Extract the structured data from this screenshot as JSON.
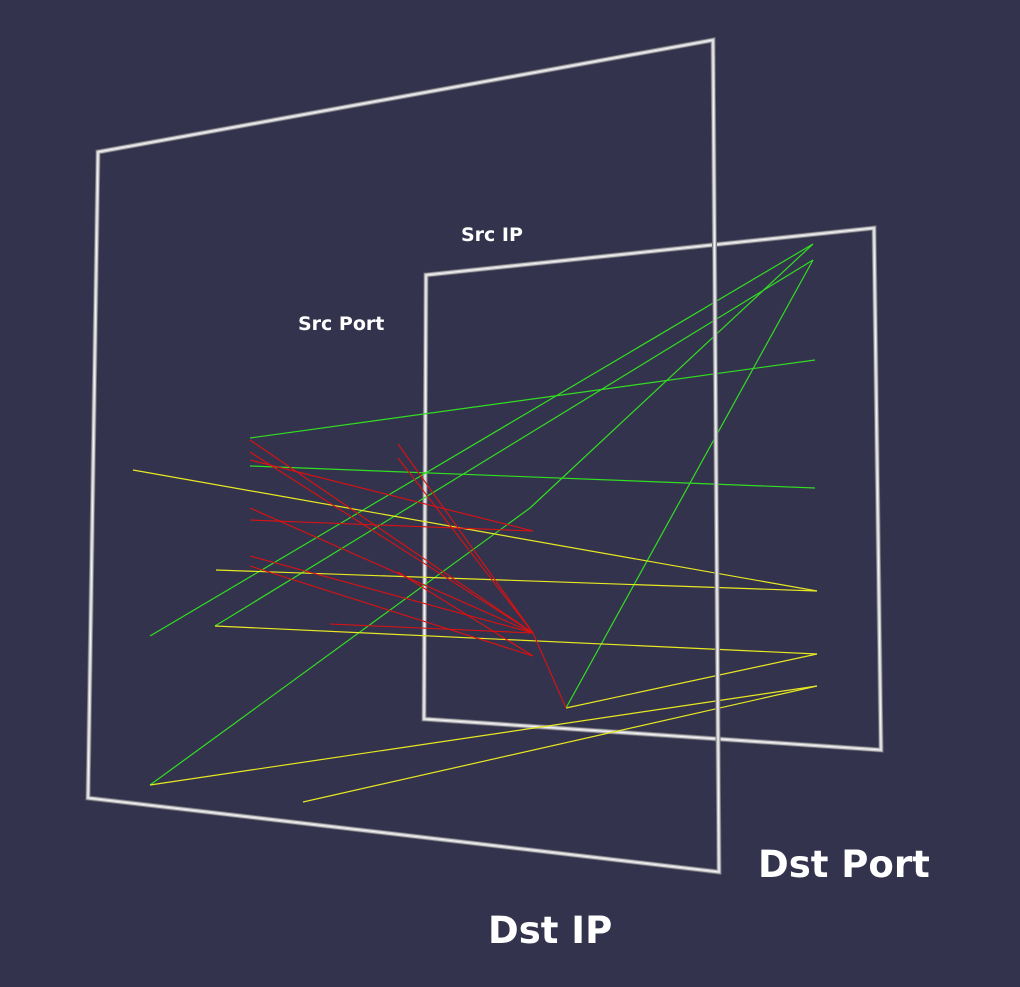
{
  "axes": {
    "src_ip": "Src IP",
    "src_port": "Src Port",
    "dst_port": "Dst Port",
    "dst_ip": "Dst IP"
  },
  "colors": {
    "background": "#33334d",
    "frame": "#c8c8cc",
    "green": "#33dd22",
    "yellow": "#e8e822",
    "red": "#dd1111"
  }
}
